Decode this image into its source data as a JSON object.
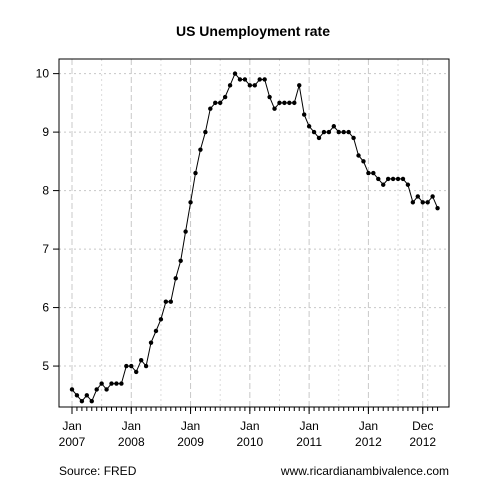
{
  "chart_data": {
    "type": "line",
    "title": "US Unemployment rate",
    "xlabel": "",
    "ylabel": "",
    "ylim": [
      4.3,
      10.25
    ],
    "y_ticks": [
      5,
      6,
      7,
      8,
      9,
      10
    ],
    "x_start": "2007-01",
    "x_ticks": [
      {
        "month": "2007-01",
        "line1": "Jan",
        "line2": "2007"
      },
      {
        "month": "2008-01",
        "line1": "Jan",
        "line2": "2008"
      },
      {
        "month": "2009-01",
        "line1": "Jan",
        "line2": "2009"
      },
      {
        "month": "2010-01",
        "line1": "Jan",
        "line2": "2010"
      },
      {
        "month": "2011-01",
        "line1": "Jan",
        "line2": "2011"
      },
      {
        "month": "2012-01",
        "line1": "Jan",
        "line2": "2012"
      },
      {
        "month": "2012-12",
        "line1": "Dec",
        "line2": "2012"
      }
    ],
    "grid": true,
    "series": [
      {
        "values": [
          4.6,
          4.5,
          4.4,
          4.5,
          4.4,
          4.6,
          4.7,
          4.6,
          4.7,
          4.7,
          4.7,
          5.0,
          5.0,
          4.9,
          5.1,
          5.0,
          5.4,
          5.6,
          5.8,
          6.1,
          6.1,
          6.5,
          6.8,
          7.3,
          7.8,
          8.3,
          8.7,
          9.0,
          9.4,
          9.5,
          9.5,
          9.6,
          9.8,
          10.0,
          9.9,
          9.9,
          9.8,
          9.8,
          9.9,
          9.9,
          9.6,
          9.4,
          9.5,
          9.5,
          9.5,
          9.5,
          9.8,
          9.3,
          9.1,
          9.0,
          8.9,
          9.0,
          9.0,
          9.1,
          9.0,
          9.0,
          9.0,
          8.9,
          8.6,
          8.5,
          8.3,
          8.3,
          8.2,
          8.1,
          8.2,
          8.2,
          8.2,
          8.2,
          8.1,
          7.8,
          7.9,
          7.8,
          7.8,
          7.9,
          7.7
        ]
      }
    ]
  },
  "footer": {
    "source": "Source: FRED",
    "website": "www.ricardianambivalence.com"
  }
}
